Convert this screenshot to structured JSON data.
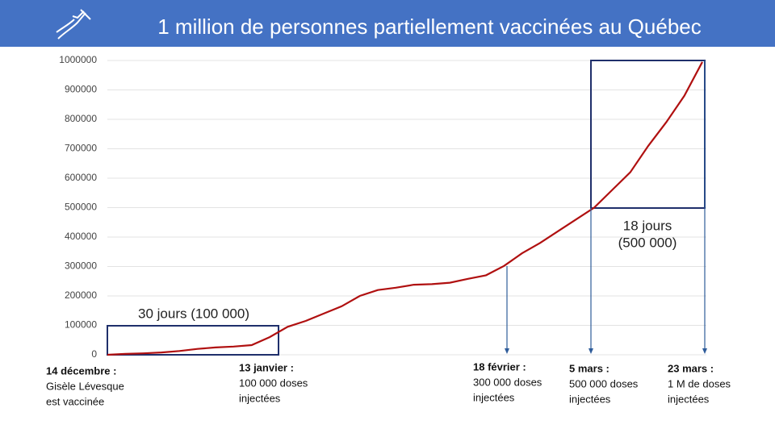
{
  "chart_data": {
    "type": "line",
    "title": "1 million de personnes partiellement vaccinées au Québec",
    "categories": [
      null,
      null,
      null,
      null,
      null,
      null,
      null,
      null,
      null,
      null,
      null,
      null,
      null,
      null,
      null,
      null,
      null,
      null,
      null,
      null,
      null,
      null,
      null,
      null,
      null,
      null,
      null,
      null,
      null,
      null,
      null,
      null,
      null,
      null
    ],
    "series": [
      {
        "color": "#b01010",
        "values": [
          0,
          3000,
          5000,
          8000,
          13000,
          20000,
          25000,
          28000,
          33000,
          60000,
          95000,
          115000,
          140000,
          165000,
          200000,
          220000,
          228000,
          238000,
          240000,
          245000,
          258000,
          270000,
          302000,
          345000,
          380000,
          420000,
          460000,
          500000,
          560000,
          620000,
          710000,
          790000,
          880000,
          995000
        ]
      }
    ],
    "ylim": [
      0,
      1000000
    ],
    "yticks": [
      0,
      100000,
      200000,
      300000,
      400000,
      500000,
      600000,
      700000,
      800000,
      900000,
      1000000
    ],
    "grid": true,
    "boxes": [
      {
        "label": [
          "30 jours (100 000)"
        ]
      },
      {
        "label": [
          "18 jours",
          "(500 000)"
        ]
      }
    ],
    "annotations": [
      {
        "title": "14 décembre :",
        "lines": [
          "Gisèle Lévesque",
          "est vaccinée"
        ]
      },
      {
        "title": "13 janvier :",
        "lines": [
          "100 000 doses",
          "injectées"
        ]
      },
      {
        "title": "18 février :",
        "lines": [
          "300 000 doses",
          "injectées"
        ]
      },
      {
        "title": "5 mars :",
        "lines": [
          "500 000 doses",
          "injectées"
        ]
      },
      {
        "title": "23 mars :",
        "lines": [
          "1 M de doses",
          "injectées"
        ]
      }
    ]
  }
}
